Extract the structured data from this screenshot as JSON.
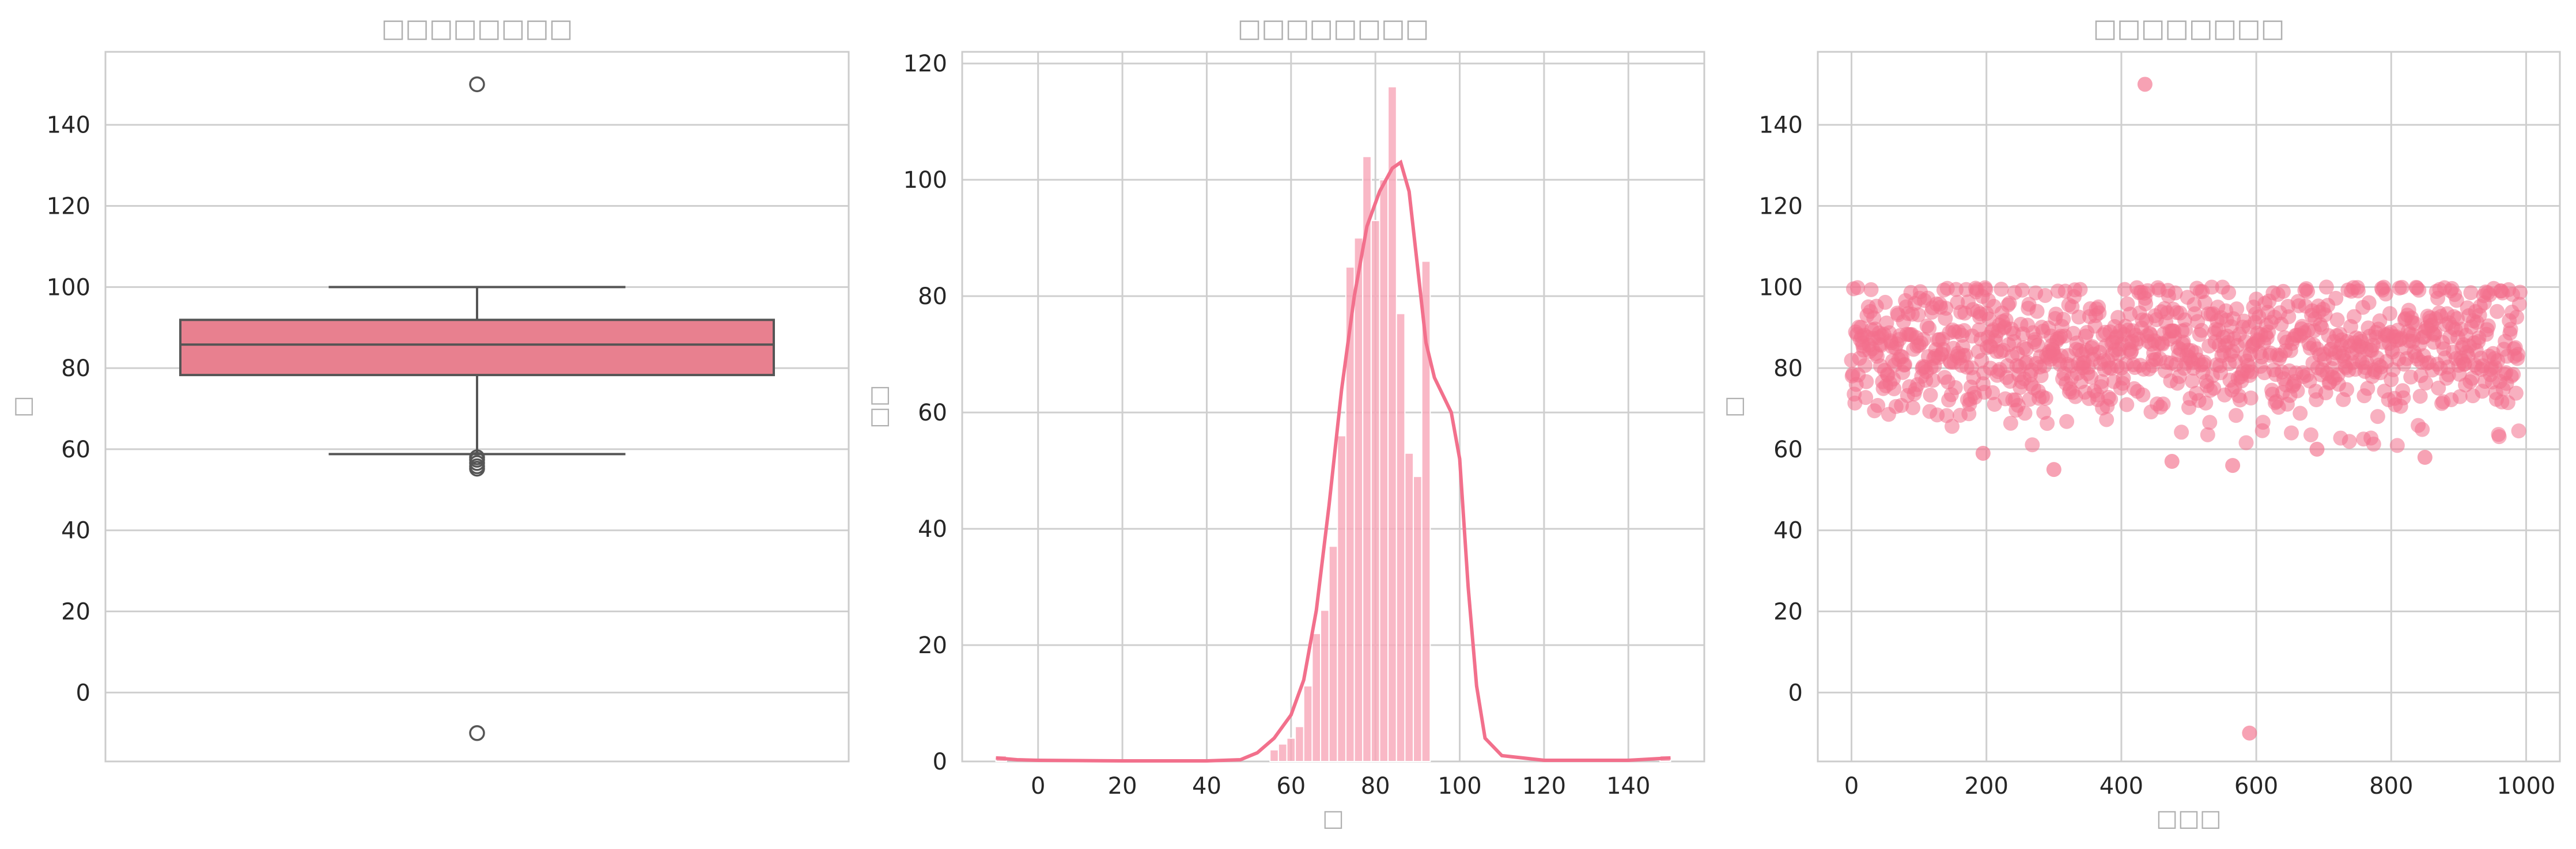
{
  "chart_data": [
    {
      "type": "box",
      "title": "□□□□□□□□",
      "xlabel": "",
      "ylabel": "□",
      "ylim": [
        -17,
        158
      ],
      "yticks": [
        0,
        20,
        40,
        60,
        80,
        100,
        120,
        140
      ],
      "grid": true,
      "color": "#e8808f",
      "box": {
        "q1": 78.3,
        "median": 85.8,
        "q3": 91.9,
        "whisker_low": 58.8,
        "whisker_high": 100
      },
      "outliers": [
        150,
        -10,
        57.4,
        56.6,
        55.8,
        55.2,
        58.0
      ]
    },
    {
      "type": "histogram",
      "title": "□□□□□□□□",
      "xlabel": "□",
      "ylabel": "□□",
      "xlim": [
        -18,
        158
      ],
      "ylim": [
        0,
        122
      ],
      "xticks": [
        0,
        20,
        40,
        60,
        80,
        100,
        120,
        140
      ],
      "yticks": [
        0,
        20,
        40,
        60,
        80,
        100,
        120
      ],
      "grid": true,
      "color": "#f7a6b8",
      "line_color": "#f2708c",
      "bins": [
        {
          "x0": -10,
          "x1": -7.5,
          "count": 1
        },
        {
          "x0": 55,
          "x1": 57,
          "count": 2
        },
        {
          "x0": 57,
          "x1": 59,
          "count": 3
        },
        {
          "x0": 59,
          "x1": 61,
          "count": 4
        },
        {
          "x0": 61,
          "x1": 63,
          "count": 6
        },
        {
          "x0": 63,
          "x1": 65,
          "count": 13
        },
        {
          "x0": 65,
          "x1": 67,
          "count": 22
        },
        {
          "x0": 67,
          "x1": 69,
          "count": 26
        },
        {
          "x0": 69,
          "x1": 71,
          "count": 37
        },
        {
          "x0": 71,
          "x1": 73,
          "count": 56
        },
        {
          "x0": 73,
          "x1": 75,
          "count": 85
        },
        {
          "x0": 75,
          "x1": 77,
          "count": 90
        },
        {
          "x0": 77,
          "x1": 79,
          "count": 104
        },
        {
          "x0": 79,
          "x1": 81,
          "count": 93
        },
        {
          "x0": 81,
          "x1": 83,
          "count": 100
        },
        {
          "x0": 83,
          "x1": 85,
          "count": 116
        },
        {
          "x0": 85,
          "x1": 87,
          "count": 77
        },
        {
          "x0": 87,
          "x1": 89,
          "count": 53
        },
        {
          "x0": 89,
          "x1": 91,
          "count": 49
        },
        {
          "x0": 91,
          "x1": 93,
          "count": 86
        },
        {
          "x0": 147.5,
          "x1": 150,
          "count": 1
        }
      ],
      "kde": [
        [
          -10,
          0.6
        ],
        [
          -5,
          0.3
        ],
        [
          0,
          0.2
        ],
        [
          20,
          0.1
        ],
        [
          40,
          0.1
        ],
        [
          48,
          0.3
        ],
        [
          52,
          1.5
        ],
        [
          56,
          4
        ],
        [
          60,
          8
        ],
        [
          63,
          14
        ],
        [
          66,
          26
        ],
        [
          69,
          44
        ],
        [
          72,
          64
        ],
        [
          75,
          80
        ],
        [
          78,
          92
        ],
        [
          81,
          98
        ],
        [
          84,
          102
        ],
        [
          86,
          103
        ],
        [
          88,
          98
        ],
        [
          90,
          85
        ],
        [
          92,
          72
        ],
        [
          94,
          66
        ],
        [
          96,
          63
        ],
        [
          98,
          60
        ],
        [
          100,
          52
        ],
        [
          102,
          30
        ],
        [
          104,
          13
        ],
        [
          106,
          4
        ],
        [
          110,
          1
        ],
        [
          120,
          0.2
        ],
        [
          140,
          0.2
        ],
        [
          150,
          0.6
        ]
      ]
    },
    {
      "type": "scatter",
      "title": "□□□□□□□□",
      "xlabel": "□□□",
      "ylabel": "□",
      "xlim": [
        -50,
        1050
      ],
      "ylim": [
        -17,
        158
      ],
      "xticks": [
        0,
        200,
        400,
        600,
        800,
        1000
      ],
      "yticks": [
        0,
        20,
        40,
        60,
        80,
        100,
        120,
        140
      ],
      "grid": true,
      "color": "#f2708c",
      "n_points": 1000,
      "points_note": "≈1000 points with values mostly between 57 and 100 (dense 70–100 band); outliers at (435, 150) and (590, -10)",
      "outlier_points": [
        [
          435,
          150
        ],
        [
          590,
          -10
        ],
        [
          300,
          55
        ],
        [
          565,
          56
        ],
        [
          475,
          57
        ],
        [
          850,
          58
        ],
        [
          195,
          59
        ],
        [
          690,
          60
        ]
      ]
    }
  ]
}
